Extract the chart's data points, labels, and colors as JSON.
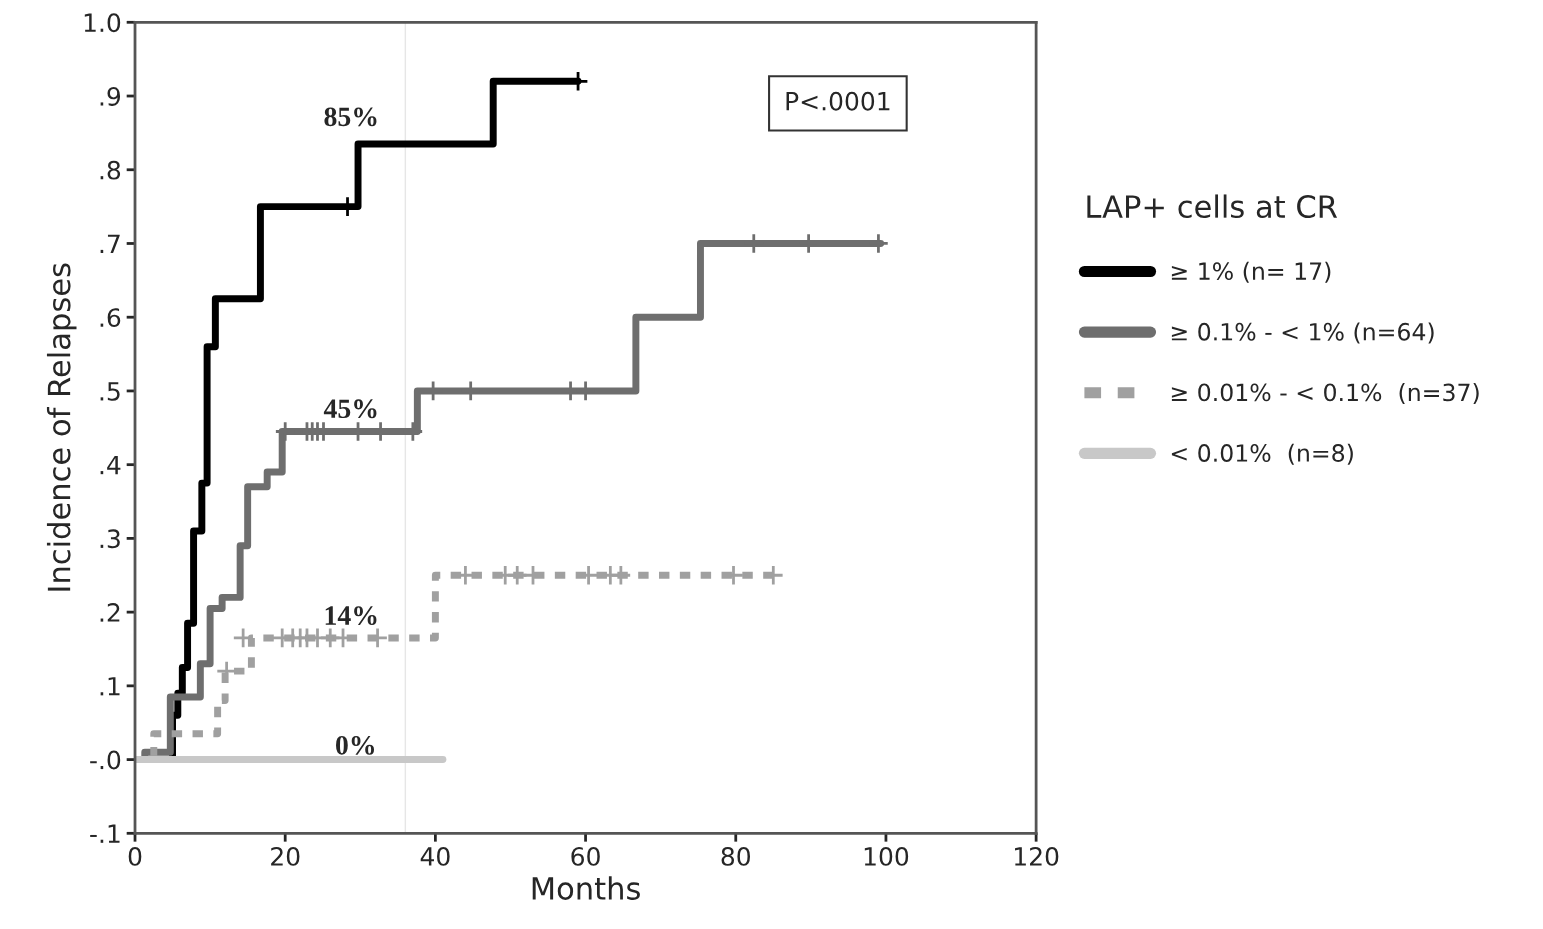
{
  "chart_data": {
    "type": "step",
    "xlabel": "Months",
    "ylabel": "Incidence of Relapses",
    "legend_title": "LAP+ cells at CR",
    "legend": "right",
    "grid": false,
    "marker": "none",
    "xlim": [
      0,
      120
    ],
    "xticks": [
      0,
      20,
      40,
      60,
      80,
      100,
      120
    ],
    "ylim": [
      -0.1,
      1.0
    ],
    "yticks": [
      {
        "value": -0.1,
        "label": "-.1"
      },
      {
        "value": 0,
        "label": "-.0"
      },
      {
        "value": 0.1,
        "label": ".1"
      },
      {
        "value": 0.2,
        "label": ".2"
      },
      {
        "value": 0.3,
        "label": ".3"
      },
      {
        "value": 0.4,
        "label": ".4"
      },
      {
        "value": 0.5,
        "label": ".5"
      },
      {
        "value": 0.6,
        "label": ".6"
      },
      {
        "value": 0.7,
        "label": ".7"
      },
      {
        "value": 0.8,
        "label": ".8"
      },
      {
        "value": 0.9,
        "label": ".9"
      },
      {
        "value": 1.0,
        "label": "1.0"
      }
    ],
    "ref_lines": [
      {
        "axis": "x",
        "value": 36,
        "color": "#e6e6e6",
        "line_style": "solid"
      }
    ],
    "annotations": [
      "P<.0001",
      "85%",
      "45%",
      "14%",
      "0%"
    ],
    "series": [
      {
        "name": "≥ 1% (n= 17)",
        "color": "#000000",
        "line_style": "solid",
        "x": [
          0,
          5,
          5.7,
          6.3,
          7,
          7.8,
          8.9,
          9.6,
          10.7,
          16.7,
          29.7,
          47.7,
          59
        ],
        "values": [
          0,
          0.06,
          0.09,
          0.125,
          0.185,
          0.31,
          0.375,
          0.56,
          0.625,
          0.75,
          0.835,
          0.92,
          0.92
        ]
      },
      {
        "name": "≥ 0.1% - < 1% (n=64)",
        "color": "#6e6e6e",
        "line_style": "solid",
        "x": [
          0,
          1.3,
          4.7,
          8.7,
          10,
          11.6,
          14,
          15,
          17.6,
          19.6,
          37.6,
          66.7,
          75.3,
          99.3
        ],
        "values": [
          0,
          0.01,
          0.085,
          0.13,
          0.205,
          0.22,
          0.29,
          0.37,
          0.39,
          0.445,
          0.5,
          0.6,
          0.7,
          0.7
        ]
      },
      {
        "name": "≥ 0.01% - < 0.1%  (n=37)",
        "color": "#a0a0a0",
        "line_style": "dashed",
        "x": [
          0,
          2.5,
          11,
          12,
          15.5,
          40,
          85
        ],
        "values": [
          0,
          0.035,
          0.08,
          0.12,
          0.165,
          0.25,
          0.25
        ]
      },
      {
        "name": "< 0.01%  (n=8)",
        "color": "#c8c8c8",
        "line_style": "solid",
        "x": [
          0,
          41
        ],
        "values": [
          0,
          0
        ]
      },
      {
        "color": "#000000",
        "type": "scatter",
        "marker": "cross",
        "x": [
          28.3,
          59
        ],
        "values": [
          0.75,
          0.92
        ]
      },
      {
        "color": "#6e6e6e",
        "type": "scatter",
        "marker": "cross",
        "x": [
          20,
          22.9,
          23.6,
          24.3,
          25.1,
          29.7,
          32.7,
          37,
          39.7,
          44.7,
          58,
          60,
          82.4,
          89.7,
          99
        ],
        "values": [
          0.445,
          0.445,
          0.445,
          0.445,
          0.445,
          0.445,
          0.445,
          0.445,
          0.5,
          0.5,
          0.5,
          0.5,
          0.7,
          0.7,
          0.7
        ]
      },
      {
        "color": "#a0a0a0",
        "type": "scatter",
        "marker": "cross",
        "x": [
          12.2,
          14.4,
          19.6,
          21,
          22,
          22.9,
          24.3,
          26,
          27.7,
          32.3,
          44,
          49.3,
          50.9,
          53,
          60.4,
          63.3,
          64.7,
          79.7,
          85
        ],
        "values": [
          0.12,
          0.165,
          0.165,
          0.165,
          0.165,
          0.165,
          0.165,
          0.165,
          0.165,
          0.165,
          0.25,
          0.25,
          0.25,
          0.25,
          0.25,
          0.25,
          0.25,
          0.25,
          0.25
        ]
      }
    ]
  }
}
